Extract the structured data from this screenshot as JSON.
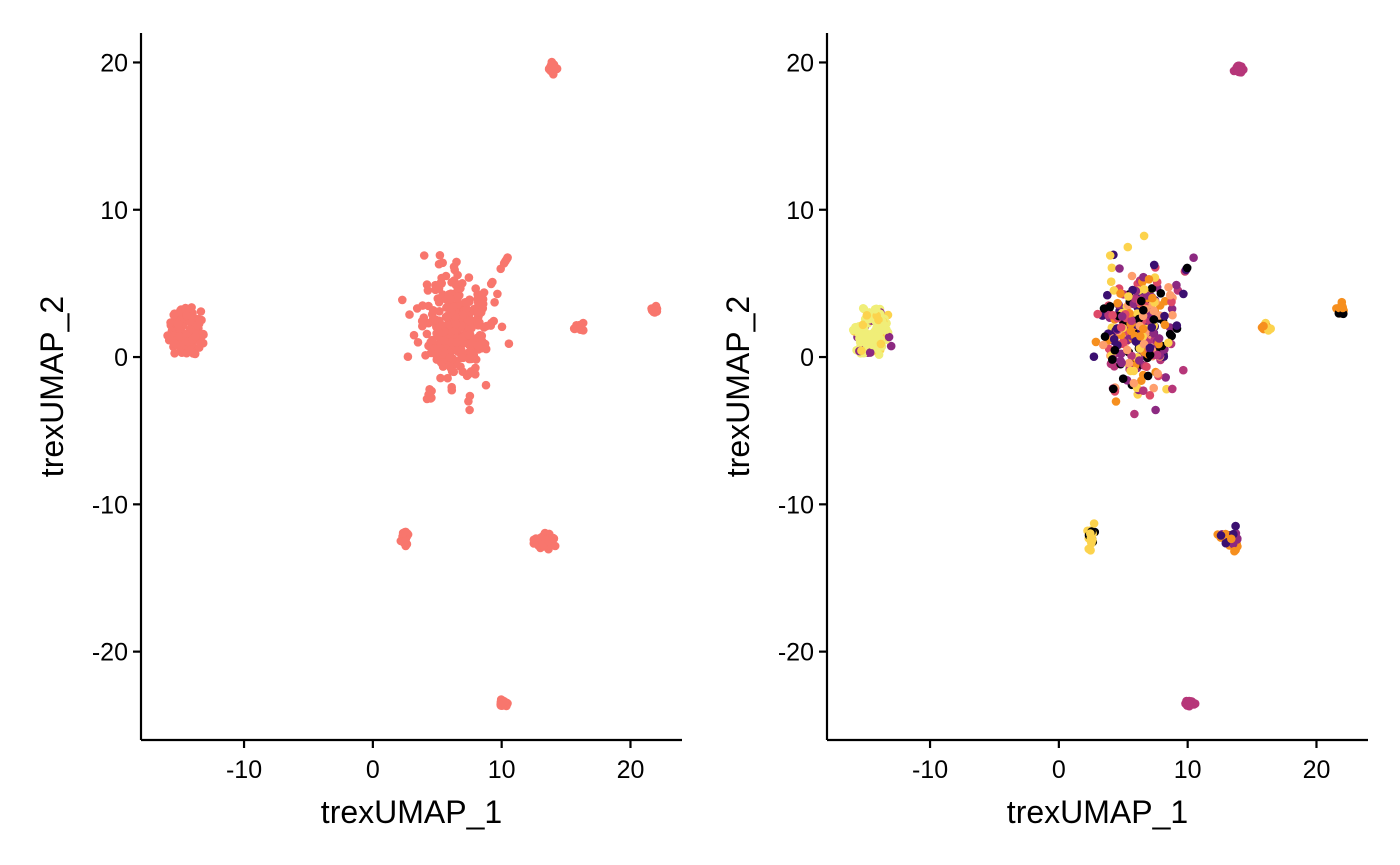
{
  "chart_data": [
    {
      "type": "scatter",
      "xlabel": "trexUMAP_1",
      "ylabel": "trexUMAP_2",
      "xlim": [
        -18,
        24
      ],
      "ylim": [
        -26,
        22
      ],
      "xticks": [
        -10,
        0,
        10,
        20
      ],
      "xtick_labels": [
        "-10",
        "0",
        "10",
        "20"
      ],
      "yticks": [
        -20,
        -10,
        0,
        10,
        20
      ],
      "ytick_labels": [
        "-20",
        "-10",
        "0",
        "10",
        "20"
      ],
      "grid": false,
      "legend": "none",
      "point_color": "#F8766D",
      "clusters": [
        {
          "cx": -14.5,
          "cy": 1.8,
          "sx": 0.9,
          "sy": 1.0,
          "n": 180
        },
        {
          "cx": 6.3,
          "cy": 2.0,
          "sx": 1.3,
          "sy": 1.9,
          "n": 320
        },
        {
          "cx": 14.0,
          "cy": 19.6,
          "sx": 0.15,
          "sy": 0.15,
          "n": 30
        },
        {
          "cx": 16.0,
          "cy": 2.0,
          "sx": 0.25,
          "sy": 0.15,
          "n": 12
        },
        {
          "cx": 21.9,
          "cy": 3.2,
          "sx": 0.15,
          "sy": 0.15,
          "n": 12
        },
        {
          "cx": 2.5,
          "cy": -12.3,
          "sx": 0.15,
          "sy": 0.3,
          "n": 25
        },
        {
          "cx": 13.4,
          "cy": -12.4,
          "sx": 0.4,
          "sy": 0.3,
          "n": 35
        },
        {
          "cx": 10.2,
          "cy": -23.5,
          "sx": 0.15,
          "sy": 0.12,
          "n": 25
        }
      ]
    },
    {
      "type": "scatter",
      "xlabel": "trexUMAP_1",
      "ylabel": "trexUMAP_2",
      "xlim": [
        -18,
        24
      ],
      "ylim": [
        -26,
        22
      ],
      "xticks": [
        -10,
        0,
        10,
        20
      ],
      "xtick_labels": [
        "-10",
        "0",
        "10",
        "20"
      ],
      "yticks": [
        -20,
        -10,
        0,
        10,
        20
      ],
      "ytick_labels": [
        "-20",
        "-10",
        "0",
        "10",
        "20"
      ],
      "grid": false,
      "legend": "none",
      "palette": [
        "#000004",
        "#3B0F70",
        "#8C2981",
        "#DE4968",
        "#B63679",
        "#FE9F6D",
        "#F68F1E",
        "#FCD34D",
        "#F0EE78"
      ],
      "clusters": [
        {
          "cx": -14.5,
          "cy": 1.8,
          "sx": 0.9,
          "sy": 1.0,
          "n": 180,
          "colors": [
            8,
            8,
            8,
            8,
            8,
            8,
            2,
            7
          ]
        },
        {
          "cx": 6.3,
          "cy": 2.0,
          "sx": 1.3,
          "sy": 1.9,
          "n": 320,
          "colors": [
            0,
            1,
            2,
            3,
            4,
            6,
            7,
            5
          ]
        },
        {
          "cx": 14.0,
          "cy": 19.6,
          "sx": 0.15,
          "sy": 0.15,
          "n": 30,
          "colors": [
            4
          ]
        },
        {
          "cx": 16.0,
          "cy": 2.0,
          "sx": 0.25,
          "sy": 0.15,
          "n": 12,
          "colors": [
            6,
            7
          ]
        },
        {
          "cx": 21.9,
          "cy": 3.2,
          "sx": 0.15,
          "sy": 0.15,
          "n": 12,
          "colors": [
            6,
            0
          ]
        },
        {
          "cx": 2.5,
          "cy": -12.3,
          "sx": 0.15,
          "sy": 0.3,
          "n": 25,
          "colors": [
            7,
            7,
            0
          ]
        },
        {
          "cx": 13.4,
          "cy": -12.4,
          "sx": 0.4,
          "sy": 0.3,
          "n": 35,
          "colors": [
            6,
            6,
            2,
            1
          ]
        },
        {
          "cx": 10.2,
          "cy": -23.5,
          "sx": 0.15,
          "sy": 0.12,
          "n": 25,
          "colors": [
            4
          ]
        }
      ]
    }
  ]
}
